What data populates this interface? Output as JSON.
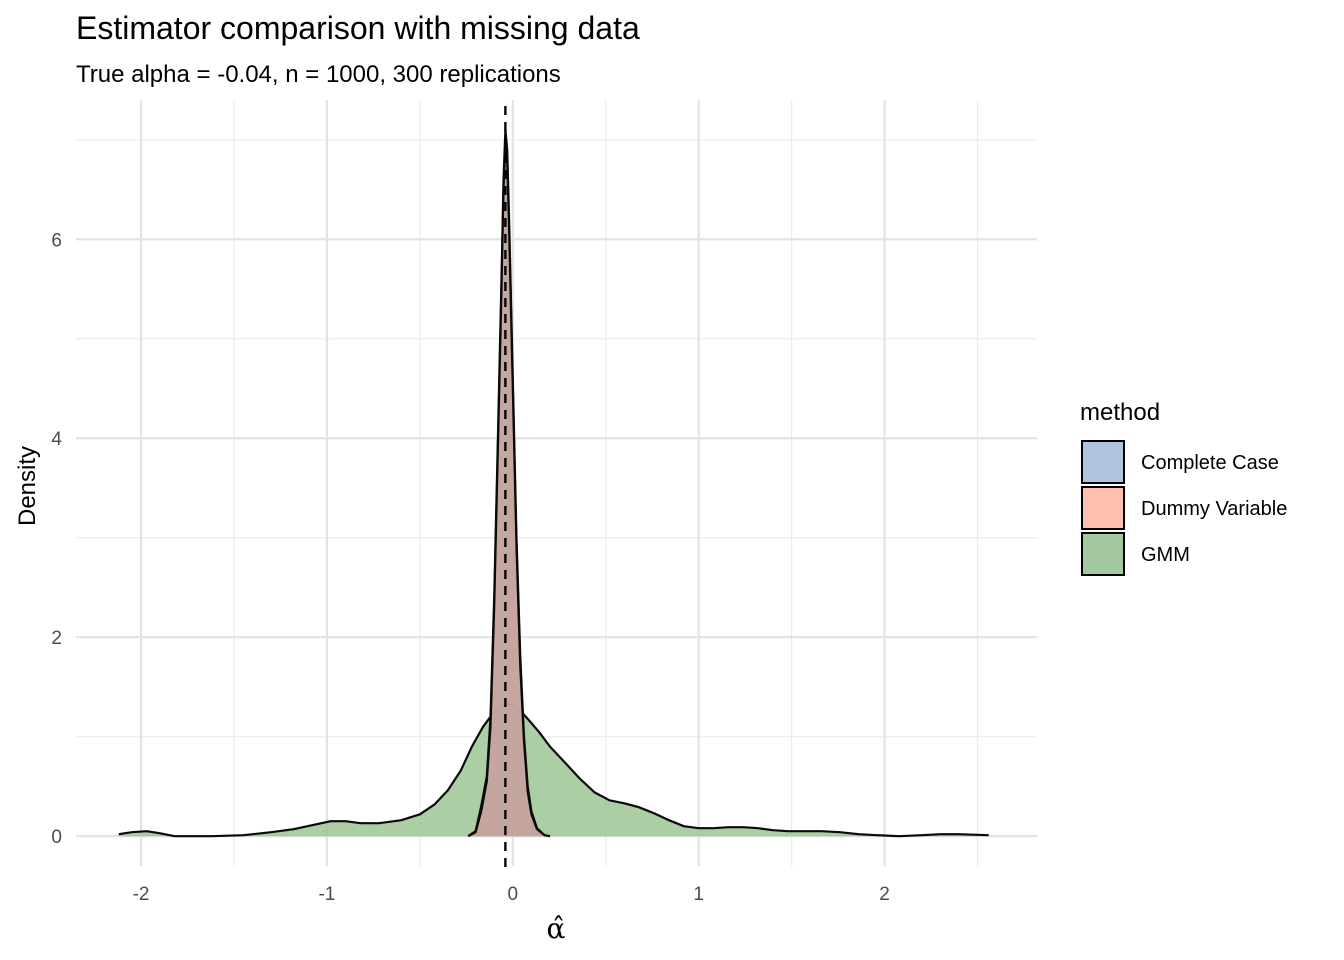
{
  "chart_data": {
    "type": "area",
    "title": "Estimator comparison with missing data",
    "subtitle": "True alpha = -0.04, n = 1000, 300 replications",
    "xlabel": "α̂",
    "ylabel": "Density",
    "xlim": [
      -2.35,
      2.82
    ],
    "ylim": [
      -0.3,
      7.4
    ],
    "x_ticks": [
      -2,
      -1,
      0,
      1,
      2
    ],
    "x_tick_labels": [
      "-2",
      "-1",
      "0",
      "1",
      "2"
    ],
    "y_ticks": [
      0,
      2,
      4,
      6
    ],
    "y_tick_labels": [
      "0",
      "2",
      "4",
      "6"
    ],
    "grid": true,
    "reference_line": {
      "x": -0.04,
      "style": "dashed"
    },
    "legend": {
      "title": "method",
      "position": "right",
      "entries": [
        {
          "label": "Complete Case",
          "color": "#b0c4de"
        },
        {
          "label": "Dummy Variable",
          "color": "#ffc0b0"
        },
        {
          "label": "GMM",
          "color": "#a4c9a0"
        }
      ]
    },
    "series": [
      {
        "name": "GMM",
        "fill": "#9cc595",
        "x": [
          -2.12,
          -2.05,
          -1.97,
          -1.9,
          -1.82,
          -1.75,
          -1.62,
          -1.45,
          -1.3,
          -1.18,
          -1.08,
          -0.98,
          -0.9,
          -0.82,
          -0.72,
          -0.6,
          -0.5,
          -0.42,
          -0.35,
          -0.28,
          -0.22,
          -0.16,
          -0.1,
          -0.06,
          -0.03,
          0.0,
          0.03,
          0.08,
          0.14,
          0.2,
          0.28,
          0.36,
          0.44,
          0.52,
          0.6,
          0.68,
          0.76,
          0.84,
          0.92,
          1.0,
          1.08,
          1.16,
          1.24,
          1.32,
          1.4,
          1.48,
          1.56,
          1.66,
          1.76,
          1.86,
          1.96,
          2.08,
          2.2,
          2.3,
          2.4,
          2.56
        ],
        "y": [
          0.02,
          0.04,
          0.05,
          0.03,
          0.0,
          0.0,
          0.0,
          0.01,
          0.04,
          0.07,
          0.11,
          0.15,
          0.15,
          0.13,
          0.13,
          0.16,
          0.22,
          0.32,
          0.46,
          0.66,
          0.9,
          1.1,
          1.25,
          1.31,
          1.33,
          1.32,
          1.28,
          1.18,
          1.05,
          0.9,
          0.74,
          0.58,
          0.44,
          0.36,
          0.33,
          0.29,
          0.23,
          0.16,
          0.1,
          0.08,
          0.08,
          0.09,
          0.09,
          0.08,
          0.06,
          0.05,
          0.05,
          0.05,
          0.04,
          0.02,
          0.01,
          0.0,
          0.01,
          0.02,
          0.02,
          0.01
        ]
      },
      {
        "name": "Complete Case",
        "fill": "#c4a49e",
        "x": [
          -0.24,
          -0.2,
          -0.17,
          -0.14,
          -0.12,
          -0.1,
          -0.08,
          -0.06,
          -0.05,
          -0.04,
          -0.03,
          -0.02,
          0.0,
          0.02,
          0.04,
          0.06,
          0.08,
          0.1,
          0.13,
          0.17,
          0.2
        ],
        "y": [
          0.0,
          0.05,
          0.3,
          0.6,
          1.2,
          2.4,
          4.0,
          5.7,
          6.6,
          7.1,
          6.9,
          6.2,
          4.6,
          3.0,
          1.8,
          1.0,
          0.5,
          0.25,
          0.08,
          0.01,
          0.0
        ]
      },
      {
        "name": "Dummy Variable",
        "fill": "#c4a49e",
        "x": [
          -0.24,
          -0.2,
          -0.17,
          -0.14,
          -0.12,
          -0.1,
          -0.08,
          -0.06,
          -0.05,
          -0.04,
          -0.03,
          -0.02,
          0.0,
          0.02,
          0.04,
          0.06,
          0.08,
          0.1,
          0.13,
          0.17,
          0.2
        ],
        "y": [
          0.0,
          0.04,
          0.25,
          0.55,
          1.1,
          2.3,
          3.9,
          5.6,
          6.5,
          6.95,
          6.8,
          6.1,
          4.5,
          2.9,
          1.7,
          0.95,
          0.45,
          0.22,
          0.07,
          0.01,
          0.0
        ]
      }
    ]
  }
}
